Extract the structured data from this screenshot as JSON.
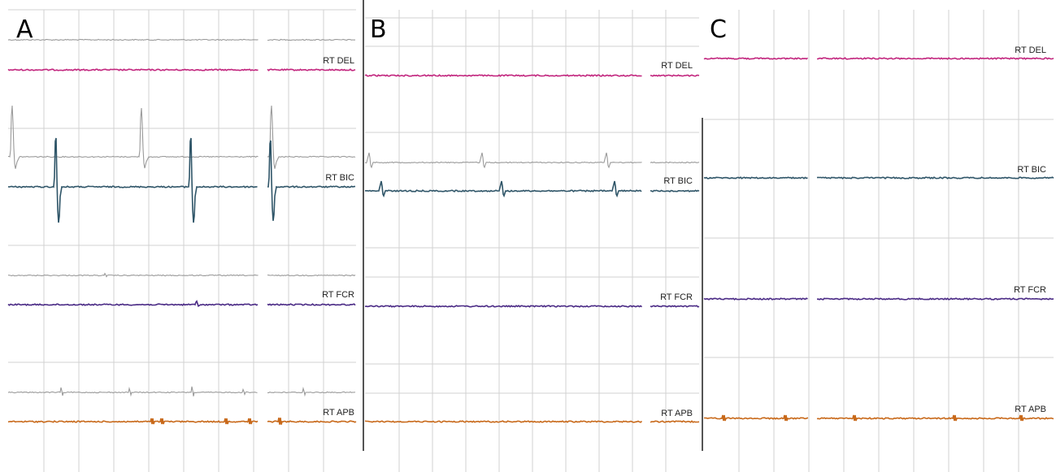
{
  "figure": {
    "panels": [
      {
        "id": "A",
        "label": "A",
        "channels": [
          {
            "name": "RT DEL",
            "color": "#c2267e",
            "reference_color": "#9a9a9a"
          },
          {
            "name": "RT BIC",
            "color": "#2f5568",
            "reference_color": "#9a9a9a",
            "spikes": "large biphasic potentials"
          },
          {
            "name": "RT FCR",
            "color": "#4a2a85",
            "reference_color": "#9a9a9a"
          },
          {
            "name": "RT APB",
            "color": "#c8691a",
            "reference_color": "#9a9a9a",
            "spikes": "small potentials"
          }
        ]
      },
      {
        "id": "B",
        "label": "B",
        "channels": [
          {
            "name": "RT DEL",
            "color": "#c2267e"
          },
          {
            "name": "RT BIC",
            "color": "#2f5568",
            "reference_color": "#9a9a9a",
            "spikes": "small potentials"
          },
          {
            "name": "RT FCR",
            "color": "#4a2a85"
          },
          {
            "name": "RT APB",
            "color": "#c8691a"
          }
        ]
      },
      {
        "id": "C",
        "label": "C",
        "channels": [
          {
            "name": "RT DEL",
            "color": "#c2267e"
          },
          {
            "name": "RT BIC",
            "color": "#2f5568"
          },
          {
            "name": "RT FCR",
            "color": "#4a2a85"
          },
          {
            "name": "RT APB",
            "color": "#c8691a",
            "spikes": "small potentials"
          }
        ]
      }
    ],
    "colors": {
      "grid": "#d2d2d2",
      "separator": "#555555"
    }
  },
  "chart_data": {
    "type": "line",
    "title": "",
    "xlabel": "",
    "ylabel": "",
    "grid": true,
    "series": [
      {
        "name": "RT DEL"
      },
      {
        "name": "RT BIC"
      },
      {
        "name": "RT FCR"
      },
      {
        "name": "RT APB"
      }
    ]
  }
}
